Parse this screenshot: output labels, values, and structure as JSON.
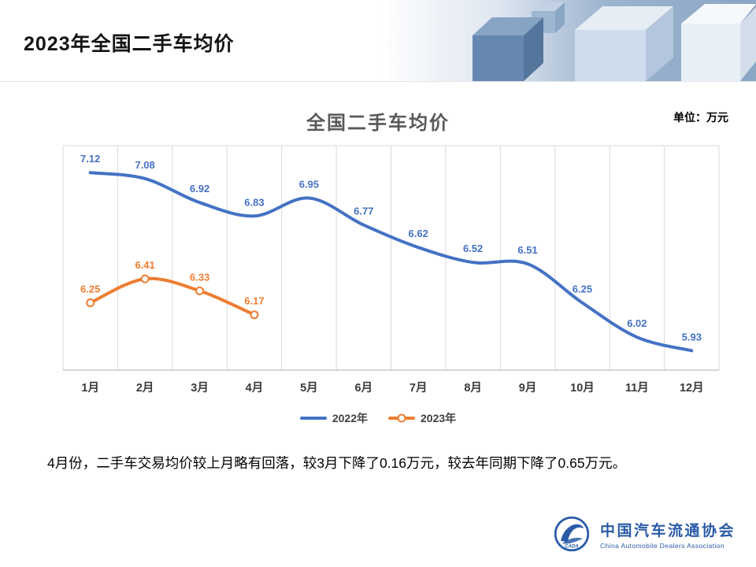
{
  "slide": {
    "header_title": "2023年全国二手车均价",
    "unit_label": "单位：万元",
    "summary_text": "4月份，二手车交易均价较上月略有回落，较3月下降了0.16万元，较去年同期下降了0.65万元。",
    "logo": {
      "name_cn": "中国汽车流通协会",
      "name_en": "China Automobile Dealers Association",
      "mark_text": "CADA",
      "brand_color": "#2B5BA8"
    }
  },
  "chart_data": {
    "type": "line",
    "title": "全国二手车均价",
    "unit": "万元",
    "categories": [
      "1月",
      "2月",
      "3月",
      "4月",
      "5月",
      "6月",
      "7月",
      "8月",
      "9月",
      "10月",
      "11月",
      "12月"
    ],
    "series": [
      {
        "name": "2022年",
        "color": "#4472C4",
        "marker": false,
        "values": [
          7.12,
          7.08,
          6.92,
          6.83,
          6.95,
          6.77,
          6.62,
          6.52,
          6.51,
          6.25,
          6.02,
          5.93
        ]
      },
      {
        "name": "2023年",
        "color": "#ED7D31",
        "marker": true,
        "values": [
          6.25,
          6.41,
          6.33,
          6.17
        ]
      }
    ],
    "ylim": [
      5.8,
      7.3
    ],
    "grid": "vertical",
    "legend_position": "bottom",
    "data_labels": true
  }
}
